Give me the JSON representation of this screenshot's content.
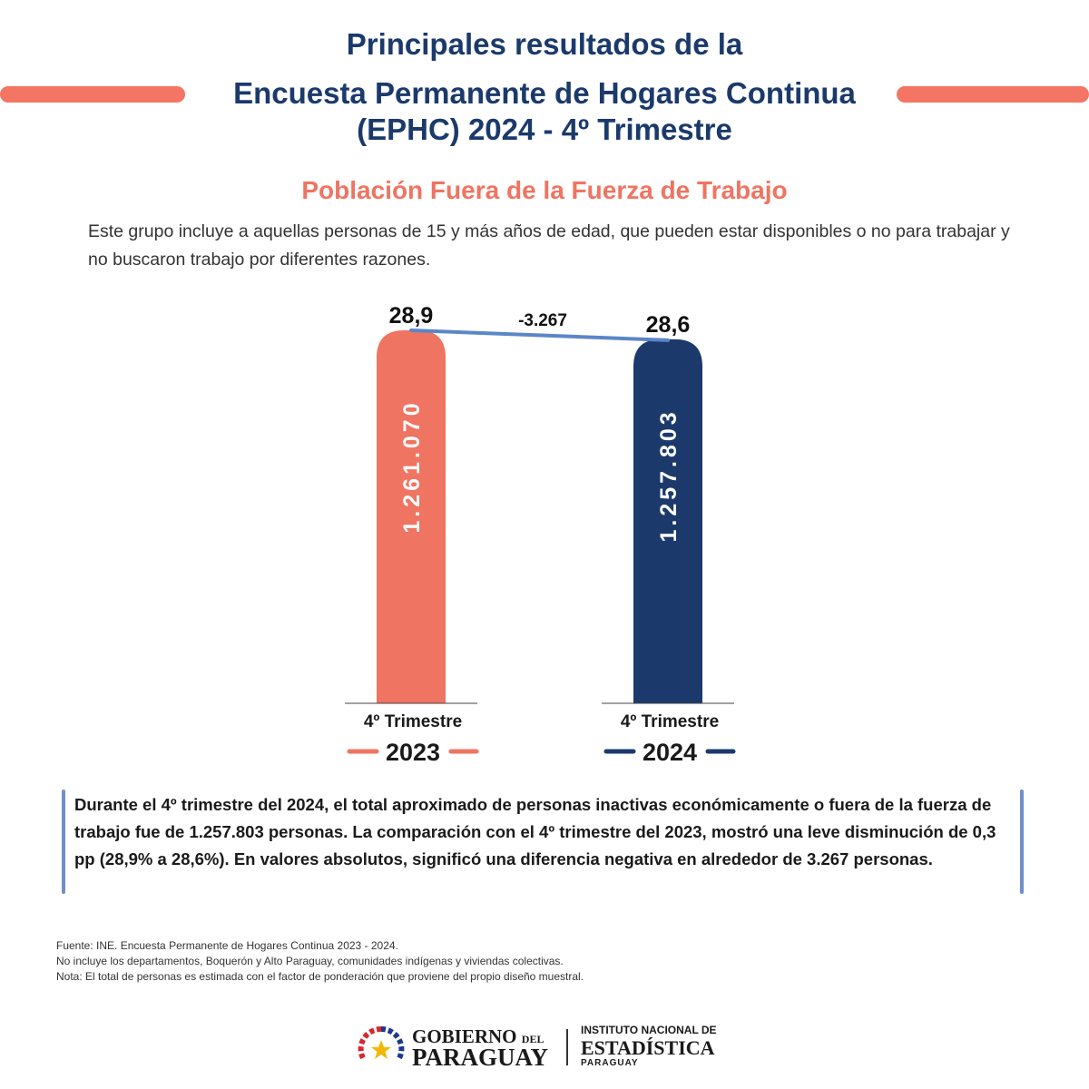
{
  "header": {
    "line1": "Principales resultados de la",
    "line2": "Encuesta Permanente de Hogares Continua",
    "line3": "(EPHC) 2024 - 4º Trimestre",
    "accent_color": "#f47563",
    "title_color": "#1b3a6b"
  },
  "section": {
    "title": "Población Fuera de la Fuerza de Trabajo",
    "intro": "Este grupo incluye a aquellas personas de 15 y más años de edad, que pueden estar disponibles o no para trabajar y no buscaron trabajo por diferentes razones."
  },
  "chart_data": {
    "type": "bar",
    "categories": [
      "4º Trimestre 2023",
      "4º Trimestre 2024"
    ],
    "period_labels": [
      "4º Trimestre",
      "4º Trimestre"
    ],
    "year_labels": [
      "2023",
      "2024"
    ],
    "values": [
      1261070,
      1257803
    ],
    "value_labels": [
      "1.261.070",
      "1.257.803"
    ],
    "rates": [
      28.9,
      28.6
    ],
    "rate_labels": [
      "28,9",
      "28,6"
    ],
    "difference_label": "-3.267",
    "colors": [
      "#ef7462",
      "#1b3a6b"
    ],
    "line_color": "#5b86c8",
    "ylim": [
      0,
      1261070
    ]
  },
  "summary": {
    "text": "Durante el 4º trimestre del 2024, el total aproximado de personas inactivas económicamente o fuera de la fuerza de trabajo fue de 1.257.803 personas. La comparación con el 4º trimestre del 2023, mostró una leve disminución de 0,3 pp (28,9% a 28,6%). En valores absolutos, significó una diferencia negativa en alrededor de 3.267 personas."
  },
  "footnotes": {
    "source": "Fuente: INE. Encuesta Permanente de Hogares Continua 2023 - 2024.",
    "exclusion": "No incluye los departamentos, Boquerón y Alto Paraguay, comunidades indígenas y viviendas colectivas.",
    "note": "Nota: El total de personas es estimada con el factor de ponderación que proviene del propio diseño muestral."
  },
  "logos": {
    "gov_line1": "GOBIERNO",
    "gov_del": "DEL",
    "gov_line2": "PARAGUAY",
    "ine_line1": "INSTITUTO NACIONAL DE",
    "ine_line2": "ESTADÍSTICA",
    "ine_line3": "PARAGUAY"
  }
}
